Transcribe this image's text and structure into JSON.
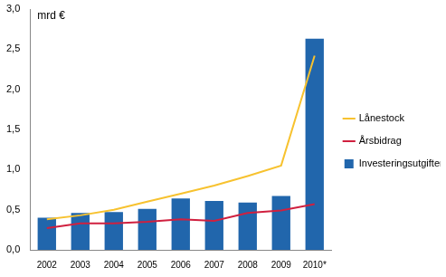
{
  "chart_data": {
    "type": "bar",
    "ylabel": "mrd €",
    "categories": [
      "2002",
      "2003",
      "2004",
      "2005",
      "2006",
      "2007",
      "2008",
      "2009",
      "2010*"
    ],
    "series": [
      {
        "name": "Investeringsutgifter totalt",
        "type": "bar",
        "color": "#2166ac",
        "values": [
          0.4,
          0.46,
          0.47,
          0.51,
          0.64,
          0.61,
          0.59,
          0.67,
          2.63
        ]
      },
      {
        "name": "Lånestock",
        "type": "line",
        "color": "#f7c22f",
        "marker": "none",
        "values": [
          0.38,
          0.43,
          0.5,
          0.6,
          0.7,
          0.8,
          0.92,
          1.05,
          2.42
        ]
      },
      {
        "name": "Årsbidrag",
        "type": "line",
        "color": "#d0203f",
        "marker": "none",
        "values": [
          0.27,
          0.33,
          0.33,
          0.35,
          0.38,
          0.36,
          0.46,
          0.49,
          0.57
        ]
      }
    ],
    "ylim": [
      0,
      3
    ],
    "yticks": [
      {
        "value": 0,
        "label": "0,0"
      },
      {
        "value": 0.5,
        "label": "0,5"
      },
      {
        "value": 1,
        "label": "1,0"
      },
      {
        "value": 1.5,
        "label": "1,5"
      },
      {
        "value": 2,
        "label": "2,0"
      },
      {
        "value": 2.5,
        "label": "2,5"
      },
      {
        "value": 3,
        "label": "3,0"
      }
    ],
    "grid": false,
    "legend": "right"
  }
}
